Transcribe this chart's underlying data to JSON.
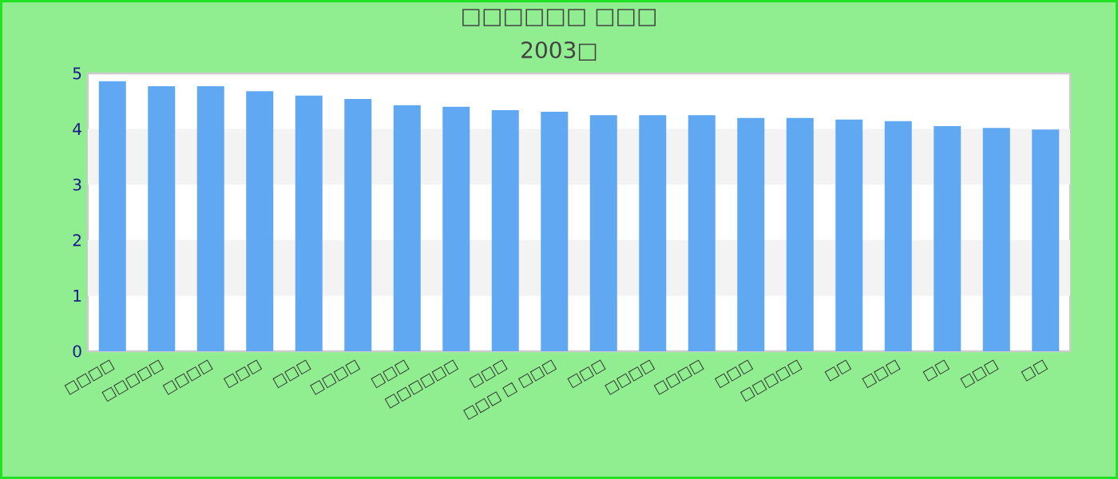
{
  "chart_data": {
    "type": "bar",
    "title": "□□□□□□ □□□",
    "subtitle": "2003□",
    "categories": [
      "□□□□",
      "□□□□□",
      "□□□□",
      "□□□",
      "□□□",
      "□□□□",
      "□□□",
      "□□□□□□",
      "□□□",
      "□□□ □ □□□",
      "□□□",
      "□□□□",
      "□□□□",
      "□□□",
      "□□□□□",
      "□□",
      "□□□",
      "□□",
      "□□□",
      "□□"
    ],
    "values": [
      4.86,
      4.77,
      4.77,
      4.68,
      4.6,
      4.54,
      4.43,
      4.4,
      4.34,
      4.31,
      4.25,
      4.25,
      4.25,
      4.2,
      4.2,
      4.17,
      4.14,
      4.05,
      4.02,
      3.99
    ],
    "color": "#61a8f3",
    "ylim": [
      0,
      5
    ],
    "yticks": [
      0,
      1,
      2,
      3,
      4,
      5
    ],
    "grid": false
  }
}
